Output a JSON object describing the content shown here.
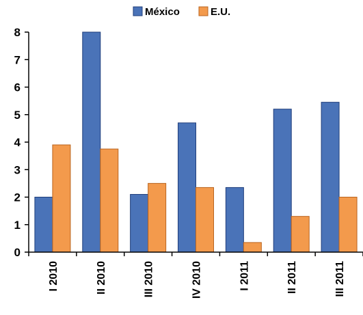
{
  "chart_data": {
    "type": "bar",
    "categories": [
      "I 2010",
      "II 2010",
      "III 2010",
      "IV 2010",
      "I 2011",
      "II 2011",
      "III 2011"
    ],
    "series": [
      {
        "name": "México",
        "values": [
          2.0,
          8.0,
          2.1,
          4.7,
          2.35,
          5.2,
          5.45
        ],
        "color": "#4a73b8"
      },
      {
        "name": "E.U.",
        "values": [
          3.9,
          3.75,
          2.5,
          2.35,
          0.35,
          1.3,
          2.0
        ],
        "color": "#f39a4c"
      }
    ],
    "title": "",
    "xlabel": "",
    "ylabel": "",
    "ylim": [
      0,
      8
    ],
    "yticks": [
      "0",
      "1",
      "2",
      "3",
      "4",
      "5",
      "6",
      "7",
      "8"
    ],
    "grid": false,
    "legend": "top-center"
  }
}
